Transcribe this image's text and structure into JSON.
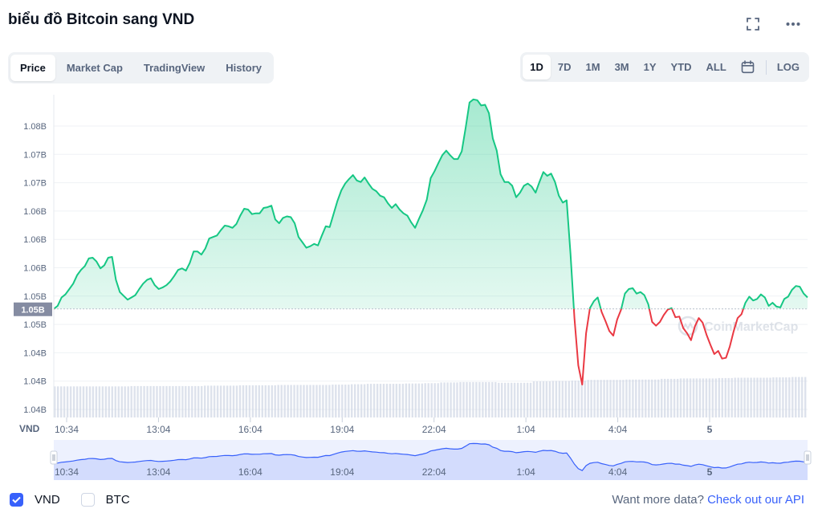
{
  "title": "biểu đồ Bitcoin sang VND",
  "icons": {
    "fullscreen": "fullscreen-icon",
    "more": "more-icon",
    "calendar": "calendar-icon",
    "check": "check-icon",
    "watermark": "coinmarketcap-logo-icon"
  },
  "tabs": [
    {
      "label": "Price",
      "active": true
    },
    {
      "label": "Market Cap",
      "active": false
    },
    {
      "label": "TradingView",
      "active": false
    },
    {
      "label": "History",
      "active": false
    }
  ],
  "ranges": [
    {
      "label": "1D",
      "active": true
    },
    {
      "label": "7D",
      "active": false
    },
    {
      "label": "1M",
      "active": false
    },
    {
      "label": "3M",
      "active": false
    },
    {
      "label": "1Y",
      "active": false
    },
    {
      "label": "YTD",
      "active": false
    },
    {
      "label": "ALL",
      "active": false
    }
  ],
  "log_label": "LOG",
  "watermark_text": "CoinMarketCap",
  "legend": {
    "vnd": "VND",
    "btc": "BTC"
  },
  "api": {
    "prefix": "Want more data?",
    "link": "Check out our API"
  },
  "colors": {
    "up": "#16c784",
    "down": "#ea3943",
    "navigator": "#3861fb"
  },
  "chart_data": {
    "type": "line",
    "currency_label": "VND",
    "y_ticks": [
      "1.08B",
      "1.07B",
      "1.07B",
      "1.06B",
      "1.06B",
      "1.06B",
      "1.05B",
      "1.05B",
      "1.04B",
      "1.04B",
      "1.04B"
    ],
    "y_range": [
      1.0395,
      1.0815
    ],
    "current_value": 1.0537,
    "current_label": "1.05B",
    "x_ticks": [
      "10:34",
      "13:04",
      "16:04",
      "19:04",
      "22:04",
      "1:04",
      "4:04",
      "5"
    ],
    "navigator_ticks": [
      "10:34",
      "13:04",
      "16:04",
      "19:04",
      "22:04",
      "1:04",
      "4:04",
      "5"
    ],
    "baseline": 1.0537,
    "series": [
      {
        "values": [
          1.0537,
          1.0541,
          1.0552,
          1.0556,
          1.0563,
          1.057,
          1.0581,
          1.0588,
          1.0593,
          1.0603,
          1.0604,
          1.0599,
          1.059,
          1.0594,
          1.0604,
          1.0605,
          1.0575,
          1.0559,
          1.0554,
          1.0549,
          1.0552,
          1.0555,
          1.0563,
          1.057,
          1.0575,
          1.0577,
          1.0568,
          1.0563,
          1.0565,
          1.0568,
          1.0573,
          1.058,
          1.0588,
          1.059,
          1.0587,
          1.0597,
          1.0612,
          1.0612,
          1.0608,
          1.0616,
          1.0629,
          1.0631,
          1.0633,
          1.064,
          1.0646,
          1.0645,
          1.0643,
          1.0648,
          1.0659,
          1.0668,
          1.0667,
          1.0661,
          1.0662,
          1.0662,
          1.0669,
          1.067,
          1.0672,
          1.0654,
          1.0649,
          1.0656,
          1.0658,
          1.0657,
          1.0649,
          1.0631,
          1.0624,
          1.0617,
          1.0619,
          1.0622,
          1.062,
          1.0633,
          1.0645,
          1.0644,
          1.0661,
          1.0678,
          1.0692,
          1.0701,
          1.0707,
          1.0712,
          1.0705,
          1.0703,
          1.0709,
          1.0701,
          1.0694,
          1.0691,
          1.0685,
          1.0683,
          1.0675,
          1.0669,
          1.0674,
          1.0667,
          1.0662,
          1.0659,
          1.065,
          1.0643,
          1.0655,
          1.0666,
          1.068,
          1.0708,
          1.0717,
          1.0728,
          1.0738,
          1.0744,
          1.0738,
          1.0733,
          1.0733,
          1.0743,
          1.0774,
          1.0807,
          1.0811,
          1.081,
          1.0803,
          1.0804,
          1.0793,
          1.076,
          1.0744,
          1.0713,
          1.0703,
          1.0703,
          1.0698,
          1.0683,
          1.0689,
          1.0698,
          1.0701,
          1.0697,
          1.0689,
          1.0703,
          1.0716,
          1.0711,
          1.0714,
          1.0703,
          1.0685,
          1.0676,
          1.0679,
          1.0609,
          1.0525,
          1.0463,
          1.0438,
          1.0505,
          1.0538,
          1.0547,
          1.0552,
          1.0533,
          1.0521,
          1.0508,
          1.0502,
          1.0523,
          1.0536,
          1.0557,
          1.0563,
          1.0564,
          1.0557,
          1.0559,
          1.0555,
          1.0543,
          1.052,
          1.0515,
          1.052,
          1.0529,
          1.0536,
          1.0538,
          1.0526,
          1.0527,
          1.0512,
          1.0505,
          1.0496,
          1.0514,
          1.0525,
          1.0519,
          1.0503,
          1.049,
          1.0478,
          1.0482,
          1.0472,
          1.0473,
          1.0488,
          1.0508,
          1.0525,
          1.053,
          1.0545,
          1.0553,
          1.0548,
          1.055,
          1.0556,
          1.0552,
          1.0541,
          1.0545,
          1.054,
          1.0539,
          1.055,
          1.0553,
          1.0562,
          1.0567,
          1.0566,
          1.0557,
          1.0552
        ]
      }
    ],
    "volume_relative": [
      0.46,
      0.46,
      0.46,
      0.46,
      0.47,
      0.47,
      0.47,
      0.47,
      0.48,
      0.48,
      0.49,
      0.49,
      0.5,
      0.5,
      0.5,
      0.51,
      0.52,
      0.53,
      0.53,
      0.54,
      0.55,
      0.57,
      0.58,
      0.58,
      0.56,
      0.56,
      0.6,
      0.61,
      0.62,
      0.64,
      0.64,
      0.65,
      0.65,
      0.67,
      0.68,
      0.68,
      0.69,
      0.7,
      0.7,
      0.71,
      0.72
    ]
  }
}
